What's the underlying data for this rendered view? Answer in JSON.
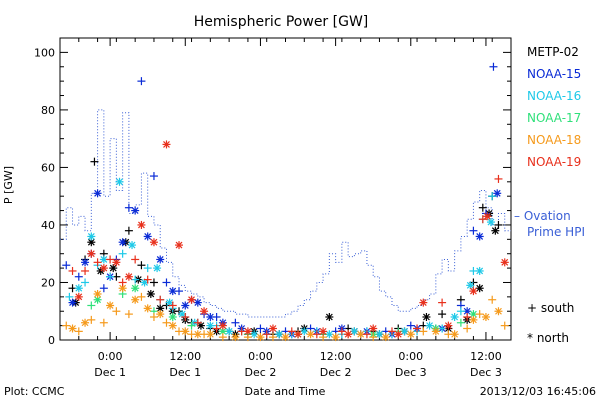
{
  "chart_data": {
    "type": "scatter",
    "title": "Hemispheric Power [GW]",
    "xlabel": "Date and Time",
    "ylabel": "P [GW]",
    "xlim": [
      -8,
      64
    ],
    "ylim": [
      0,
      105
    ],
    "yticks": [
      0,
      20,
      40,
      60,
      80,
      100
    ],
    "xticks": [
      {
        "x": 0,
        "time": "0:00",
        "date": "Dec 1"
      },
      {
        "x": 12,
        "time": "12:00",
        "date": "Dec 1"
      },
      {
        "x": 24,
        "time": "0:00",
        "date": "Dec 2"
      },
      {
        "x": 36,
        "time": "12:00",
        "date": "Dec 2"
      },
      {
        "x": 48,
        "time": "0:00",
        "date": "Dec 3"
      },
      {
        "x": 60,
        "time": "12:00",
        "date": "Dec 3"
      }
    ],
    "legend": {
      "position": "right",
      "symbol_note": [
        {
          "symbol": "+",
          "label": "south"
        },
        {
          "symbol": "*",
          "label": "north"
        }
      ]
    },
    "series": [
      {
        "name": "METP-02",
        "color": "#000000",
        "south": [
          [
            -6,
            18
          ],
          [
            -4,
            28
          ],
          [
            -2.5,
            62
          ],
          [
            -1,
            30
          ],
          [
            1,
            22
          ],
          [
            3,
            38
          ],
          [
            5,
            26
          ],
          [
            7,
            20
          ],
          [
            9,
            12
          ],
          [
            11,
            10
          ],
          [
            13,
            6
          ],
          [
            16,
            4
          ],
          [
            19,
            3
          ],
          [
            22,
            2
          ],
          [
            26,
            2
          ],
          [
            30,
            3
          ],
          [
            34,
            2
          ],
          [
            38,
            4
          ],
          [
            42,
            3
          ],
          [
            46,
            4
          ],
          [
            50,
            5
          ],
          [
            53,
            9
          ],
          [
            56,
            14
          ],
          [
            58,
            20
          ],
          [
            59.5,
            46
          ],
          [
            61,
            50
          ],
          [
            62,
            40
          ]
        ],
        "north": [
          [
            -5.5,
            13
          ],
          [
            -3,
            34
          ],
          [
            -1.5,
            24
          ],
          [
            0.5,
            25
          ],
          [
            2.5,
            34
          ],
          [
            4.5,
            21
          ],
          [
            6.5,
            16
          ],
          [
            8,
            11
          ],
          [
            10,
            10
          ],
          [
            12,
            7
          ],
          [
            14.5,
            5
          ],
          [
            17,
            3
          ],
          [
            20,
            2
          ],
          [
            23,
            3
          ],
          [
            27,
            2
          ],
          [
            31,
            4
          ],
          [
            35,
            8
          ],
          [
            39,
            3
          ],
          [
            43,
            2
          ],
          [
            47,
            3
          ],
          [
            50.5,
            8
          ],
          [
            54,
            4
          ],
          [
            57,
            7
          ],
          [
            59,
            18
          ],
          [
            60.5,
            44
          ],
          [
            61.5,
            38
          ]
        ]
      },
      {
        "name": "NOAA-15",
        "color": "#0a2bd6",
        "south": [
          [
            -7,
            26
          ],
          [
            -5,
            22
          ],
          [
            -3,
            30
          ],
          [
            -1,
            18
          ],
          [
            1,
            28
          ],
          [
            3,
            46
          ],
          [
            5,
            90
          ],
          [
            7,
            57
          ],
          [
            9,
            20
          ],
          [
            11,
            17
          ],
          [
            13,
            14
          ],
          [
            15,
            9
          ],
          [
            17,
            8
          ],
          [
            20,
            6
          ],
          [
            24,
            4
          ],
          [
            28,
            3
          ],
          [
            32,
            4
          ],
          [
            36,
            3
          ],
          [
            40,
            2
          ],
          [
            44,
            3
          ],
          [
            48,
            5
          ],
          [
            52,
            4
          ],
          [
            56,
            12
          ],
          [
            58,
            38
          ],
          [
            60,
            44
          ],
          [
            61.2,
            95
          ]
        ],
        "north": [
          [
            -6,
            13
          ],
          [
            -4,
            27
          ],
          [
            -2,
            51
          ],
          [
            0,
            22
          ],
          [
            2,
            34
          ],
          [
            4,
            45
          ],
          [
            6,
            36
          ],
          [
            8,
            28
          ],
          [
            10,
            17
          ],
          [
            12,
            12
          ],
          [
            14,
            13
          ],
          [
            16,
            8
          ],
          [
            18,
            6
          ],
          [
            21,
            4
          ],
          [
            25,
            3
          ],
          [
            29,
            2
          ],
          [
            33,
            3
          ],
          [
            37,
            4
          ],
          [
            41,
            3
          ],
          [
            45,
            2
          ],
          [
            49,
            4
          ],
          [
            53,
            4
          ],
          [
            57,
            10
          ],
          [
            59,
            36
          ],
          [
            61.8,
            51
          ]
        ]
      },
      {
        "name": "NOAA-16",
        "color": "#1ec9e8",
        "south": [
          [
            -6.5,
            15
          ],
          [
            -4,
            20
          ],
          [
            -2,
            26
          ],
          [
            0,
            22
          ],
          [
            2,
            30
          ],
          [
            4,
            21
          ],
          [
            6,
            25
          ],
          [
            8,
            14
          ],
          [
            10,
            11
          ],
          [
            12,
            8
          ],
          [
            14,
            6
          ],
          [
            17,
            5
          ],
          [
            21,
            3
          ],
          [
            25,
            2
          ],
          [
            29,
            2
          ],
          [
            33,
            3
          ],
          [
            37,
            2
          ],
          [
            41,
            3
          ],
          [
            45,
            2
          ],
          [
            49,
            3
          ],
          [
            53,
            4
          ],
          [
            56,
            10
          ],
          [
            58,
            24
          ],
          [
            59.5,
            42
          ],
          [
            61,
            50
          ]
        ],
        "north": [
          [
            -5,
            18
          ],
          [
            -3,
            36
          ],
          [
            -1,
            28
          ],
          [
            1.5,
            55
          ],
          [
            3.5,
            33
          ],
          [
            5.5,
            20
          ],
          [
            7.5,
            25
          ],
          [
            9.5,
            13
          ],
          [
            11.5,
            9
          ],
          [
            13.5,
            6
          ],
          [
            16,
            5
          ],
          [
            19,
            3
          ],
          [
            23,
            2
          ],
          [
            27,
            2
          ],
          [
            31,
            3
          ],
          [
            35,
            2
          ],
          [
            39,
            3
          ],
          [
            43,
            2
          ],
          [
            47,
            3
          ],
          [
            51,
            5
          ],
          [
            55,
            8
          ],
          [
            57.5,
            19
          ],
          [
            59,
            24
          ],
          [
            60.8,
            41
          ]
        ]
      },
      {
        "name": "NOAA-17",
        "color": "#2fe07a",
        "south": [
          [
            -3,
            12
          ],
          [
            2,
            16
          ],
          [
            7,
            10
          ],
          [
            13,
            5
          ],
          [
            22,
            2
          ],
          [
            34,
            2
          ],
          [
            46,
            3
          ],
          [
            56,
            6
          ]
        ],
        "north": [
          [
            -2,
            14
          ],
          [
            4,
            18
          ],
          [
            10,
            8
          ],
          [
            18,
            3
          ],
          [
            30,
            2
          ],
          [
            42,
            2
          ],
          [
            52,
            4
          ],
          [
            58,
            9
          ]
        ]
      },
      {
        "name": "NOAA-18",
        "color": "#f59a1c",
        "south": [
          [
            -7,
            5
          ],
          [
            -5,
            3
          ],
          [
            -3,
            7
          ],
          [
            -1,
            6
          ],
          [
            1,
            10
          ],
          [
            3,
            9
          ],
          [
            5,
            15
          ],
          [
            7,
            8
          ],
          [
            9,
            6
          ],
          [
            11,
            3
          ],
          [
            13,
            2
          ],
          [
            15,
            2
          ],
          [
            18,
            1
          ],
          [
            22,
            1
          ],
          [
            26,
            1
          ],
          [
            30,
            2
          ],
          [
            34,
            1
          ],
          [
            38,
            2
          ],
          [
            42,
            1
          ],
          [
            46,
            2
          ],
          [
            50,
            3
          ],
          [
            54,
            2
          ],
          [
            57,
            4
          ],
          [
            59,
            9
          ],
          [
            61,
            14
          ],
          [
            63,
            5
          ]
        ],
        "north": [
          [
            -6,
            4
          ],
          [
            -4,
            6
          ],
          [
            -2,
            16
          ],
          [
            0,
            12
          ],
          [
            2,
            18
          ],
          [
            4,
            14
          ],
          [
            6,
            11
          ],
          [
            8,
            9
          ],
          [
            10,
            5
          ],
          [
            12,
            3
          ],
          [
            14,
            2
          ],
          [
            16,
            2
          ],
          [
            20,
            1
          ],
          [
            24,
            1
          ],
          [
            28,
            1
          ],
          [
            32,
            2
          ],
          [
            36,
            1
          ],
          [
            40,
            2
          ],
          [
            44,
            1
          ],
          [
            48,
            2
          ],
          [
            52,
            3
          ],
          [
            55,
            2
          ],
          [
            58,
            7
          ],
          [
            60,
            8
          ],
          [
            62,
            10
          ]
        ]
      },
      {
        "name": "NOAA-19",
        "color": "#e8301c",
        "south": [
          [
            -6,
            24
          ],
          [
            -4,
            24
          ],
          [
            -2,
            27
          ],
          [
            0,
            28
          ],
          [
            2,
            20
          ],
          [
            4,
            28
          ],
          [
            6,
            21
          ],
          [
            8,
            14
          ],
          [
            10,
            12
          ],
          [
            12,
            8
          ],
          [
            14,
            6
          ],
          [
            17,
            4
          ],
          [
            21,
            3
          ],
          [
            25,
            2
          ],
          [
            29,
            3
          ],
          [
            33,
            2
          ],
          [
            37,
            3
          ],
          [
            41,
            2
          ],
          [
            45,
            3
          ],
          [
            49,
            4
          ],
          [
            53,
            13
          ],
          [
            57,
            8
          ],
          [
            59.5,
            42
          ],
          [
            62,
            56
          ]
        ],
        "north": [
          [
            -5,
            15
          ],
          [
            -3,
            30
          ],
          [
            -1,
            25
          ],
          [
            1,
            27
          ],
          [
            3,
            22
          ],
          [
            5,
            40
          ],
          [
            7,
            34
          ],
          [
            9,
            68
          ],
          [
            11,
            33
          ],
          [
            13,
            14
          ],
          [
            15,
            10
          ],
          [
            18,
            5
          ],
          [
            22,
            3
          ],
          [
            26,
            4
          ],
          [
            30,
            2
          ],
          [
            34,
            3
          ],
          [
            38,
            2
          ],
          [
            42,
            4
          ],
          [
            46,
            2
          ],
          [
            50,
            13
          ],
          [
            54,
            5
          ],
          [
            58,
            17
          ],
          [
            60.2,
            43
          ],
          [
            63,
            27
          ]
        ]
      }
    ],
    "ovation": {
      "name": "Ovation Prime HPI",
      "legend_dash": "–",
      "color": "#3a5fd6",
      "x": [
        -8,
        -7,
        -6,
        -5,
        -4,
        -3,
        -2,
        -1,
        0,
        1,
        2,
        3,
        4,
        5,
        6,
        7,
        8,
        9,
        10,
        11,
        12,
        13,
        14,
        15,
        16,
        17,
        18,
        19,
        20,
        21,
        22,
        23,
        24,
        25,
        26,
        27,
        28,
        29,
        30,
        31,
        32,
        33,
        34,
        35,
        36,
        37,
        38,
        39,
        40,
        41,
        42,
        43,
        44,
        45,
        46,
        47,
        48,
        49,
        50,
        51,
        52,
        53,
        54,
        55,
        56,
        57,
        58,
        59,
        60,
        61,
        62,
        63,
        64
      ],
      "y": [
        35,
        46,
        40,
        43,
        38,
        51,
        80,
        50,
        70,
        52,
        79,
        44,
        47,
        58,
        43,
        40,
        32,
        27,
        22,
        19,
        17,
        16,
        15,
        13,
        12,
        11,
        10,
        10,
        9,
        9,
        8,
        8,
        8,
        8,
        8,
        8,
        9,
        10,
        12,
        14,
        17,
        20,
        23,
        30,
        27,
        34,
        29,
        30,
        31,
        26,
        22,
        17,
        15,
        12,
        10,
        10,
        11,
        12,
        14,
        16,
        23,
        28,
        24,
        31,
        36,
        42,
        48,
        52,
        46,
        40,
        44,
        38,
        38
      ]
    }
  },
  "footer": {
    "left": "Plot: CCMC",
    "center": "Date and Time",
    "right": "2013/12/03 16:45:06"
  }
}
